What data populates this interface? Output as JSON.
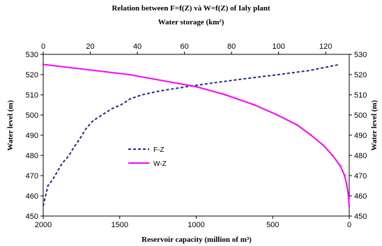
{
  "chart_data": {
    "type": "line",
    "title": "Relation between F=f(Z) và W=f(Z)  of Ialy plant",
    "subtitle": "Water storage (km²)",
    "xlabel_bottom": "Reservoir capacity (million of m³)",
    "xlabel_top": "Water storage (km²)",
    "ylabel_left": "Water level (m)",
    "ylabel_right": "Water level (m)",
    "xlim_bottom": [
      2000,
      0
    ],
    "xticks_bottom": [
      2000,
      1500,
      1000,
      500,
      0
    ],
    "xlim_top": [
      0,
      130
    ],
    "xticks_top": [
      0,
      20,
      40,
      60,
      80,
      100,
      120
    ],
    "ylim": [
      450,
      530
    ],
    "yticks": [
      450,
      460,
      470,
      480,
      490,
      500,
      510,
      520,
      530
    ],
    "grid": false,
    "legend_position": "center-left",
    "series": [
      {
        "name": "F-Z",
        "axis": "top",
        "color": "#1f2a8a",
        "style": "dashed",
        "points": [
          [
            0,
            455
          ],
          [
            1,
            460
          ],
          [
            2,
            465
          ],
          [
            4,
            468
          ],
          [
            6,
            472
          ],
          [
            8,
            476
          ],
          [
            11,
            480
          ],
          [
            13,
            484
          ],
          [
            16,
            489
          ],
          [
            18,
            493
          ],
          [
            21,
            497
          ],
          [
            25,
            500
          ],
          [
            29,
            503
          ],
          [
            33,
            505
          ],
          [
            37,
            508
          ],
          [
            42,
            510
          ],
          [
            50,
            512
          ],
          [
            61,
            514
          ],
          [
            73,
            516
          ],
          [
            86,
            518
          ],
          [
            100,
            520
          ],
          [
            113,
            522
          ],
          [
            126,
            525
          ]
        ]
      },
      {
        "name": "W-Z",
        "axis": "bottom",
        "color": "#ff00ff",
        "style": "solid",
        "points": [
          [
            2000,
            525
          ],
          [
            1440,
            520
          ],
          [
            1000,
            514
          ],
          [
            810,
            510
          ],
          [
            620,
            505
          ],
          [
            470,
            500
          ],
          [
            340,
            495
          ],
          [
            250,
            490
          ],
          [
            170,
            485
          ],
          [
            110,
            480
          ],
          [
            60,
            475
          ],
          [
            30,
            470
          ],
          [
            15,
            465
          ],
          [
            5,
            460
          ],
          [
            0,
            455
          ]
        ]
      }
    ]
  }
}
